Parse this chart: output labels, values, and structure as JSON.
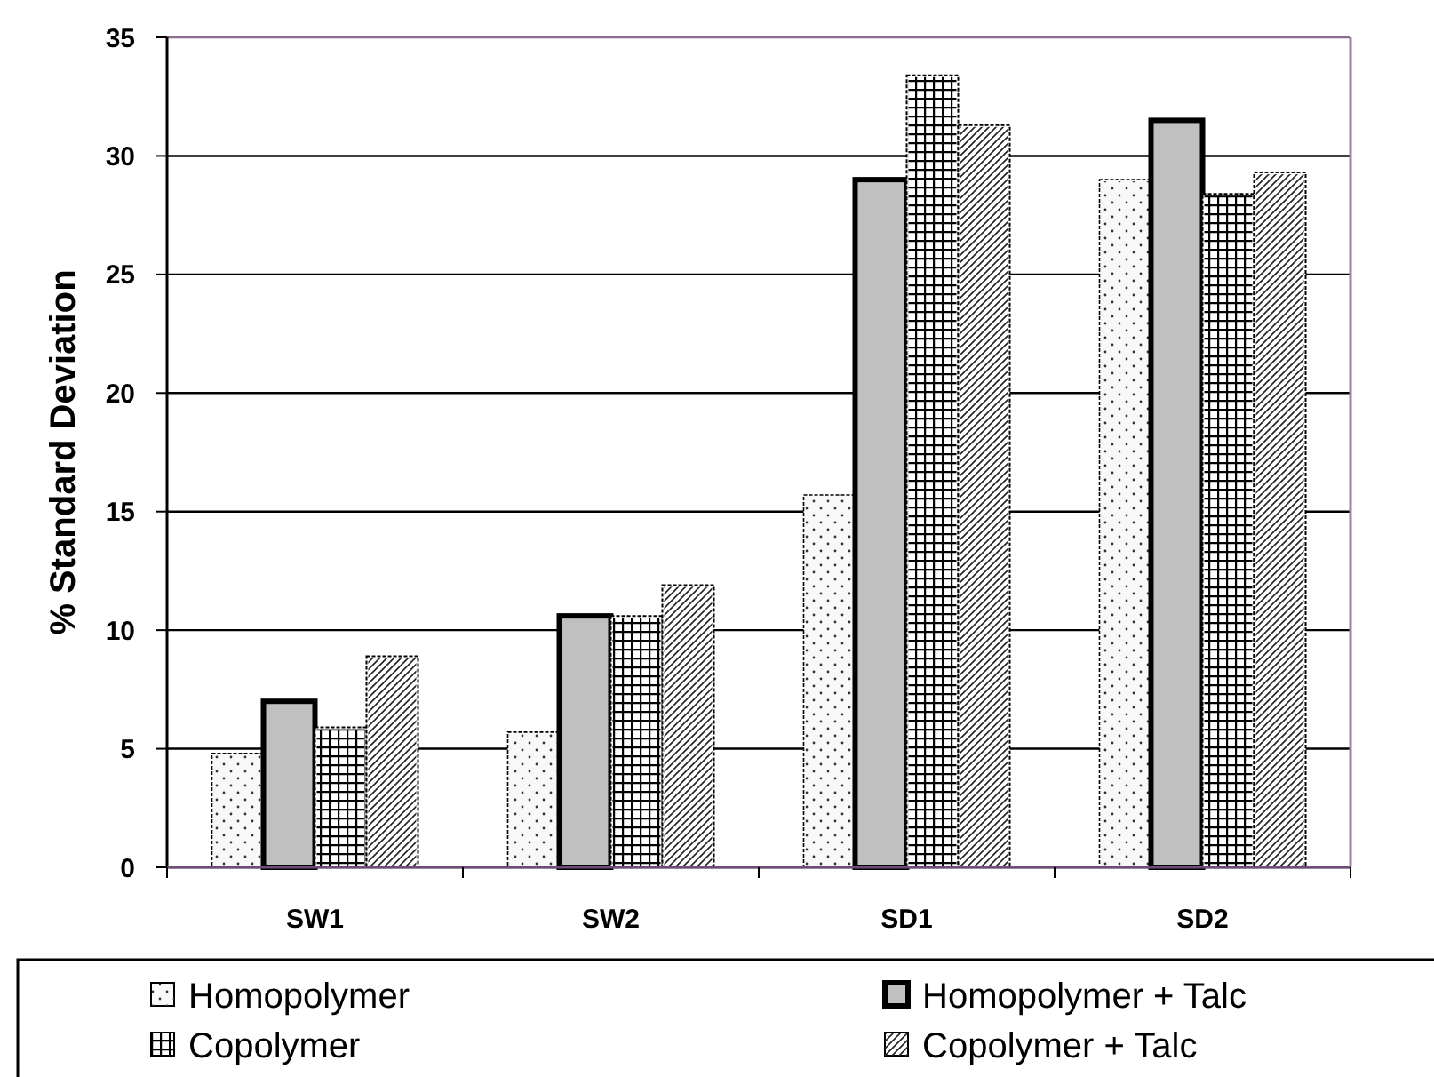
{
  "chart_data": {
    "type": "bar",
    "ylabel": "% Standard Deviation",
    "categories": [
      "SW1",
      "SW2",
      "SD1",
      "SD2"
    ],
    "series": [
      {
        "name": "Homopolymer",
        "color": "#f8f8f8",
        "values": [
          4.8,
          5.7,
          15.7,
          29.0
        ]
      },
      {
        "name": "Homopolymer + Talc",
        "color": "#c0c0c0",
        "values": [
          7.0,
          10.6,
          29.0,
          31.5
        ]
      },
      {
        "name": "Copolymer",
        "color": "#ffffff",
        "values": [
          5.9,
          10.6,
          33.4,
          28.4
        ]
      },
      {
        "name": "Copolymer + Talc",
        "color": "#ffffff",
        "values": [
          8.9,
          11.9,
          31.3,
          29.3
        ]
      }
    ],
    "ylim": [
      0,
      35
    ],
    "yticks": [
      0,
      5,
      10,
      15,
      20,
      25,
      30,
      35
    ],
    "grid": "y",
    "legend": "bottom"
  }
}
